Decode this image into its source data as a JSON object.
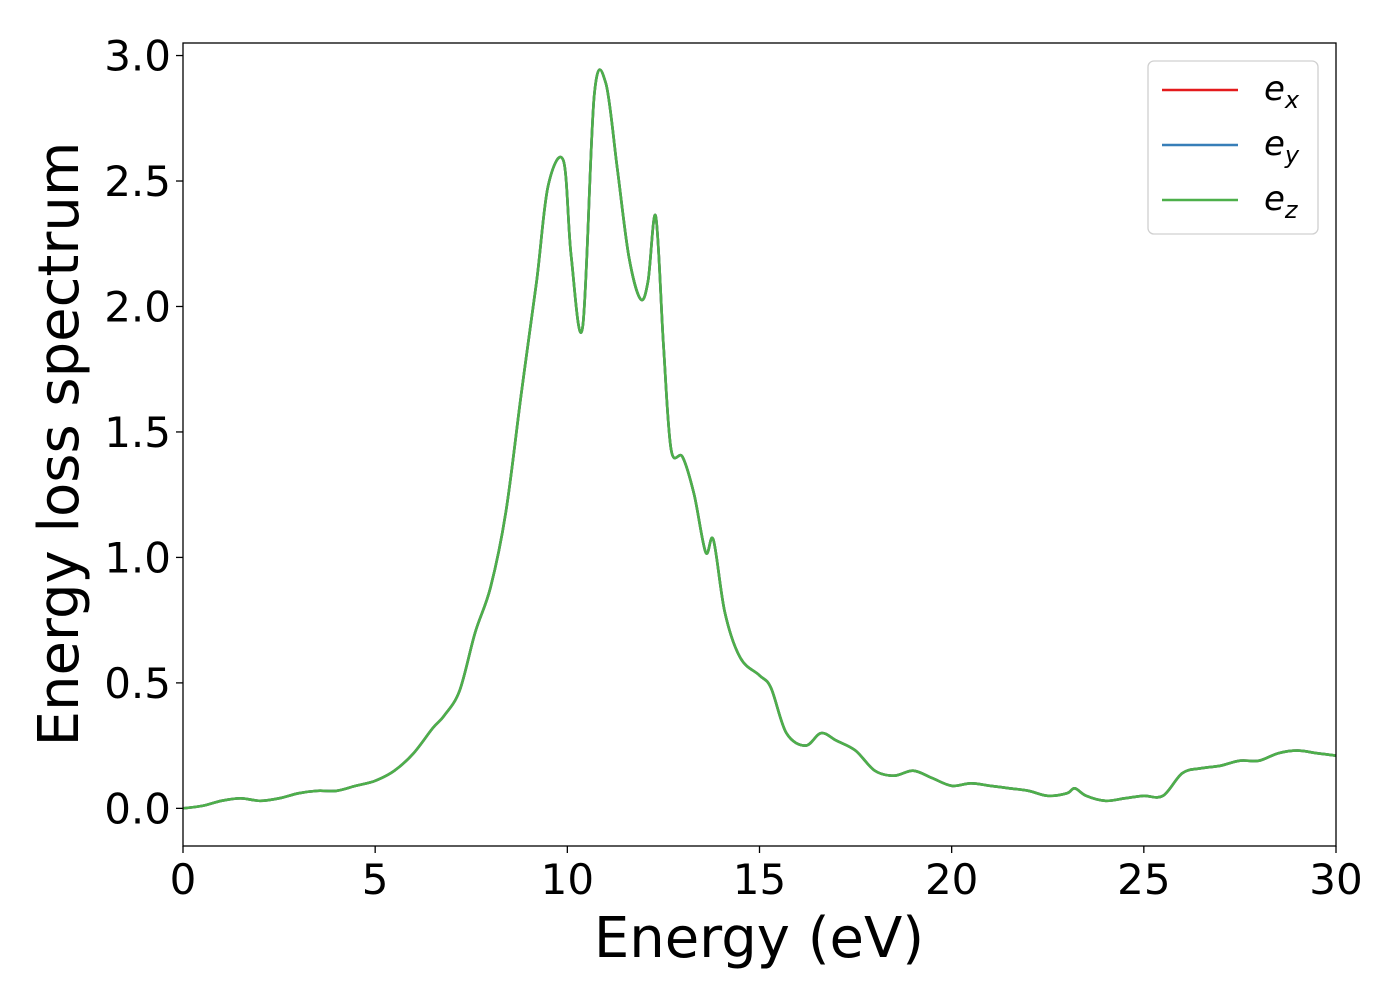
{
  "chart_data": {
    "type": "line",
    "title": "",
    "xlabel": "Energy (eV)",
    "ylabel": "Energy loss spectrum",
    "xlim": [
      0,
      30
    ],
    "ylim": [
      -0.15,
      3.05
    ],
    "xticks": [
      0,
      5,
      10,
      15,
      20,
      25,
      30
    ],
    "xtick_labels": [
      "0",
      "5",
      "10",
      "15",
      "20",
      "25",
      "30"
    ],
    "yticks": [
      0.0,
      0.5,
      1.0,
      1.5,
      2.0,
      2.5,
      3.0
    ],
    "ytick_labels": [
      "0.0",
      "0.5",
      "1.0",
      "1.5",
      "2.0",
      "2.5",
      "3.0"
    ],
    "grid": false,
    "legend_position": "top-right",
    "series": [
      {
        "name_base": "e",
        "name_sub": "x",
        "color": "#e41a1c",
        "x": [
          0,
          0.5,
          1.0,
          1.5,
          2.0,
          2.5,
          3.0,
          3.5,
          4.0,
          4.5,
          5.0,
          5.5,
          6.0,
          6.5,
          6.8,
          7.2,
          7.6,
          8.0,
          8.4,
          8.8,
          9.2,
          9.5,
          9.9,
          10.1,
          10.4,
          10.7,
          11.0,
          11.3,
          11.6,
          11.9,
          12.1,
          12.3,
          12.5,
          12.7,
          13.0,
          13.3,
          13.6,
          13.8,
          14.1,
          14.5,
          15.0,
          15.3,
          15.7,
          16.2,
          16.6,
          17.0,
          17.5,
          18.0,
          18.5,
          19.0,
          19.5,
          20.0,
          20.5,
          21.0,
          21.5,
          22.0,
          22.5,
          23.0,
          23.2,
          23.5,
          24.0,
          24.5,
          25.0,
          25.5,
          26.0,
          26.5,
          27.0,
          27.5,
          28.0,
          28.5,
          29.0,
          29.5,
          30.0
        ],
        "y": [
          0.0,
          0.01,
          0.03,
          0.04,
          0.03,
          0.04,
          0.06,
          0.07,
          0.07,
          0.09,
          0.11,
          0.15,
          0.22,
          0.32,
          0.37,
          0.47,
          0.7,
          0.88,
          1.18,
          1.65,
          2.1,
          2.48,
          2.58,
          2.2,
          1.92,
          2.84,
          2.89,
          2.55,
          2.2,
          2.03,
          2.1,
          2.36,
          1.85,
          1.43,
          1.4,
          1.25,
          1.02,
          1.07,
          0.78,
          0.6,
          0.53,
          0.48,
          0.3,
          0.25,
          0.3,
          0.27,
          0.23,
          0.15,
          0.13,
          0.15,
          0.12,
          0.09,
          0.1,
          0.09,
          0.08,
          0.07,
          0.05,
          0.06,
          0.08,
          0.05,
          0.03,
          0.04,
          0.05,
          0.05,
          0.14,
          0.16,
          0.17,
          0.19,
          0.19,
          0.22,
          0.23,
          0.22,
          0.21
        ]
      },
      {
        "name_base": "e",
        "name_sub": "y",
        "color": "#377eb8",
        "x": [
          0,
          0.5,
          1.0,
          1.5,
          2.0,
          2.5,
          3.0,
          3.5,
          4.0,
          4.5,
          5.0,
          5.5,
          6.0,
          6.5,
          6.8,
          7.2,
          7.6,
          8.0,
          8.4,
          8.8,
          9.2,
          9.5,
          9.9,
          10.1,
          10.4,
          10.7,
          11.0,
          11.3,
          11.6,
          11.9,
          12.1,
          12.3,
          12.5,
          12.7,
          13.0,
          13.3,
          13.6,
          13.8,
          14.1,
          14.5,
          15.0,
          15.3,
          15.7,
          16.2,
          16.6,
          17.0,
          17.5,
          18.0,
          18.5,
          19.0,
          19.5,
          20.0,
          20.5,
          21.0,
          21.5,
          22.0,
          22.5,
          23.0,
          23.2,
          23.5,
          24.0,
          24.5,
          25.0,
          25.5,
          26.0,
          26.5,
          27.0,
          27.5,
          28.0,
          28.5,
          29.0,
          29.5,
          30.0
        ],
        "y": [
          0.0,
          0.01,
          0.03,
          0.04,
          0.03,
          0.04,
          0.06,
          0.07,
          0.07,
          0.09,
          0.11,
          0.15,
          0.22,
          0.32,
          0.37,
          0.47,
          0.7,
          0.88,
          1.18,
          1.65,
          2.1,
          2.48,
          2.58,
          2.2,
          1.92,
          2.84,
          2.89,
          2.55,
          2.2,
          2.03,
          2.1,
          2.36,
          1.85,
          1.43,
          1.4,
          1.25,
          1.02,
          1.07,
          0.78,
          0.6,
          0.53,
          0.48,
          0.3,
          0.25,
          0.3,
          0.27,
          0.23,
          0.15,
          0.13,
          0.15,
          0.12,
          0.09,
          0.1,
          0.09,
          0.08,
          0.07,
          0.05,
          0.06,
          0.08,
          0.05,
          0.03,
          0.04,
          0.05,
          0.05,
          0.14,
          0.16,
          0.17,
          0.19,
          0.19,
          0.22,
          0.23,
          0.22,
          0.21
        ]
      },
      {
        "name_base": "e",
        "name_sub": "z",
        "color": "#4daf4a",
        "x": [
          0,
          0.5,
          1.0,
          1.5,
          2.0,
          2.5,
          3.0,
          3.5,
          4.0,
          4.5,
          5.0,
          5.5,
          6.0,
          6.5,
          6.8,
          7.2,
          7.6,
          8.0,
          8.4,
          8.8,
          9.2,
          9.5,
          9.9,
          10.1,
          10.4,
          10.7,
          11.0,
          11.3,
          11.6,
          11.9,
          12.1,
          12.3,
          12.5,
          12.7,
          13.0,
          13.3,
          13.6,
          13.8,
          14.1,
          14.5,
          15.0,
          15.3,
          15.7,
          16.2,
          16.6,
          17.0,
          17.5,
          18.0,
          18.5,
          19.0,
          19.5,
          20.0,
          20.5,
          21.0,
          21.5,
          22.0,
          22.5,
          23.0,
          23.2,
          23.5,
          24.0,
          24.5,
          25.0,
          25.5,
          26.0,
          26.5,
          27.0,
          27.5,
          28.0,
          28.5,
          29.0,
          29.5,
          30.0
        ],
        "y": [
          0.0,
          0.01,
          0.03,
          0.04,
          0.03,
          0.04,
          0.06,
          0.07,
          0.07,
          0.09,
          0.11,
          0.15,
          0.22,
          0.32,
          0.37,
          0.47,
          0.7,
          0.88,
          1.18,
          1.65,
          2.1,
          2.48,
          2.58,
          2.2,
          1.92,
          2.84,
          2.89,
          2.55,
          2.2,
          2.03,
          2.1,
          2.36,
          1.85,
          1.43,
          1.4,
          1.25,
          1.02,
          1.07,
          0.78,
          0.6,
          0.53,
          0.48,
          0.3,
          0.25,
          0.3,
          0.27,
          0.23,
          0.15,
          0.13,
          0.15,
          0.12,
          0.09,
          0.1,
          0.09,
          0.08,
          0.07,
          0.05,
          0.06,
          0.08,
          0.05,
          0.03,
          0.04,
          0.05,
          0.05,
          0.14,
          0.16,
          0.17,
          0.19,
          0.19,
          0.22,
          0.23,
          0.22,
          0.21
        ]
      }
    ]
  }
}
